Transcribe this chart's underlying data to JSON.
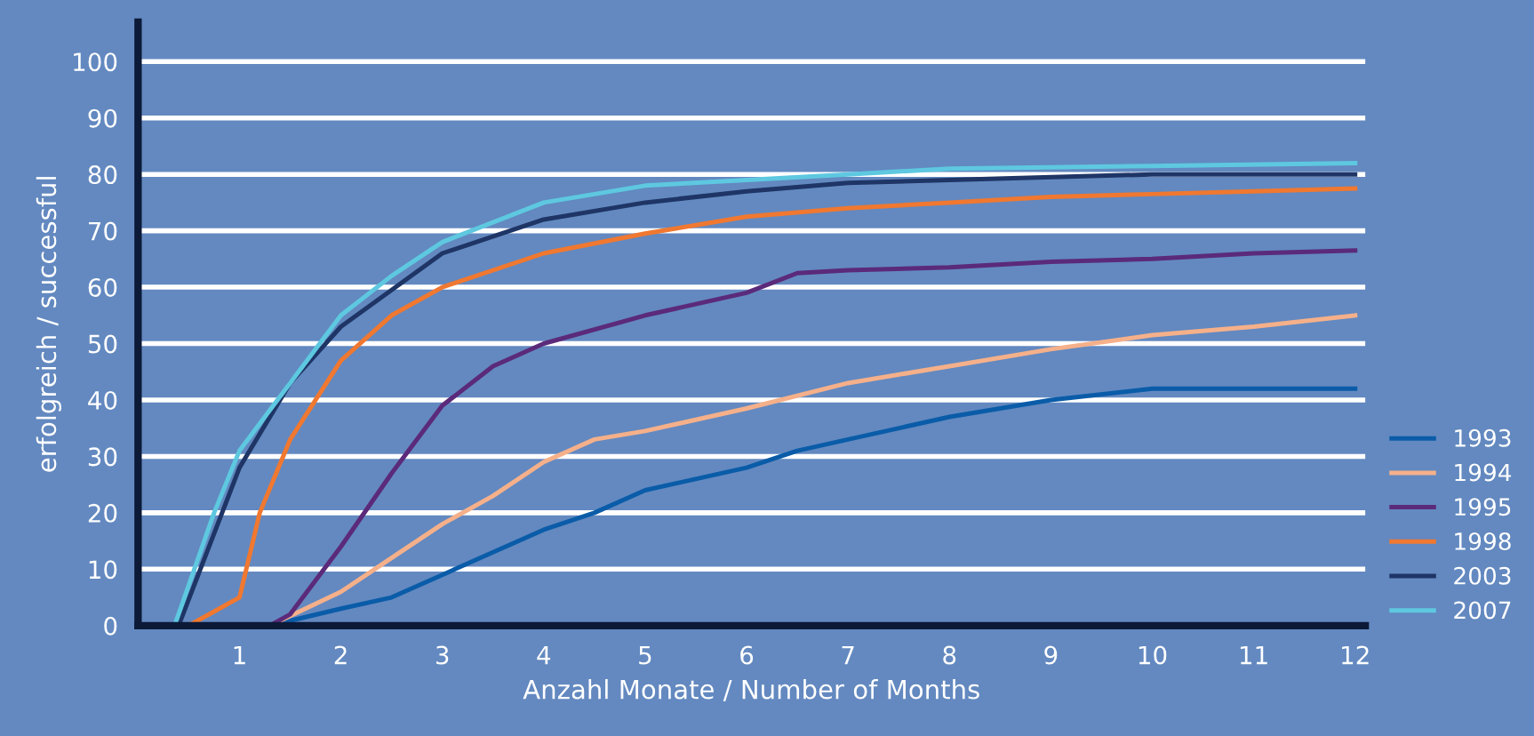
{
  "chart_data": {
    "type": "line",
    "xlabel": "Anzahl Monate / Number of Months",
    "ylabel": "erfolgreich / successful",
    "xlim": [
      0,
      12.1
    ],
    "xticks": [
      1,
      2,
      3,
      4,
      5,
      6,
      7,
      8,
      9,
      10,
      11,
      12
    ],
    "ylim": [
      0,
      107
    ],
    "yticks": [
      0,
      10,
      20,
      30,
      40,
      50,
      60,
      70,
      80,
      90,
      100
    ],
    "grid": "y",
    "legend": "bottom right",
    "marker": "none",
    "line_style": "solid",
    "series": [
      {
        "name": "1993",
        "color": "#0a5ca8",
        "x": [
          1.3,
          2,
          2.5,
          3,
          3.5,
          4,
          4.5,
          5,
          6,
          6.5,
          7,
          8,
          9,
          10,
          12
        ],
        "values": [
          0,
          3,
          5,
          9,
          13,
          17,
          20,
          24,
          28,
          31,
          33,
          37,
          40,
          42,
          42
        ]
      },
      {
        "name": "1994",
        "color": "#f5b08a",
        "x": [
          1.3,
          2,
          2.5,
          3,
          3.5,
          4,
          4.5,
          5,
          6,
          7,
          8,
          9,
          10,
          11,
          12
        ],
        "values": [
          0,
          6,
          12,
          18,
          23,
          29,
          33,
          34.5,
          38.5,
          43,
          46,
          49,
          51.5,
          53,
          55
        ]
      },
      {
        "name": "1995",
        "color": "#5b2a7a",
        "x": [
          1.3,
          1.5,
          2,
          2.5,
          3,
          3.5,
          4,
          5,
          6,
          6.5,
          7,
          8,
          9,
          10,
          11,
          12
        ],
        "values": [
          0,
          2,
          14,
          27,
          39,
          46,
          50,
          55,
          59,
          62.5,
          63,
          63.5,
          64.5,
          65,
          66,
          66.5
        ]
      },
      {
        "name": "1998",
        "color": "#f07830",
        "x": [
          0.5,
          1,
          1.2,
          1.5,
          2,
          2.5,
          3,
          4,
          5,
          6,
          7,
          8,
          9,
          10,
          11,
          12
        ],
        "values": [
          0,
          5,
          20,
          33,
          47,
          55,
          60,
          66,
          69.5,
          72.5,
          74,
          75,
          76,
          76.5,
          77,
          77.5
        ]
      },
      {
        "name": "2003",
        "color": "#1e3566",
        "x": [
          0.4,
          1,
          1.5,
          2,
          3,
          4,
          5,
          6,
          7,
          8,
          10,
          12
        ],
        "values": [
          0,
          28,
          43,
          53,
          66,
          72,
          75,
          77,
          78.5,
          79,
          80,
          80
        ]
      },
      {
        "name": "2007",
        "color": "#5ec8e0",
        "x": [
          0.36,
          0.75,
          1,
          2,
          2.5,
          3,
          4,
          5,
          6,
          7,
          8,
          10,
          12
        ],
        "values": [
          0,
          20,
          31,
          55,
          62,
          68,
          75,
          78,
          79,
          80,
          81,
          81.5,
          82
        ]
      }
    ]
  }
}
